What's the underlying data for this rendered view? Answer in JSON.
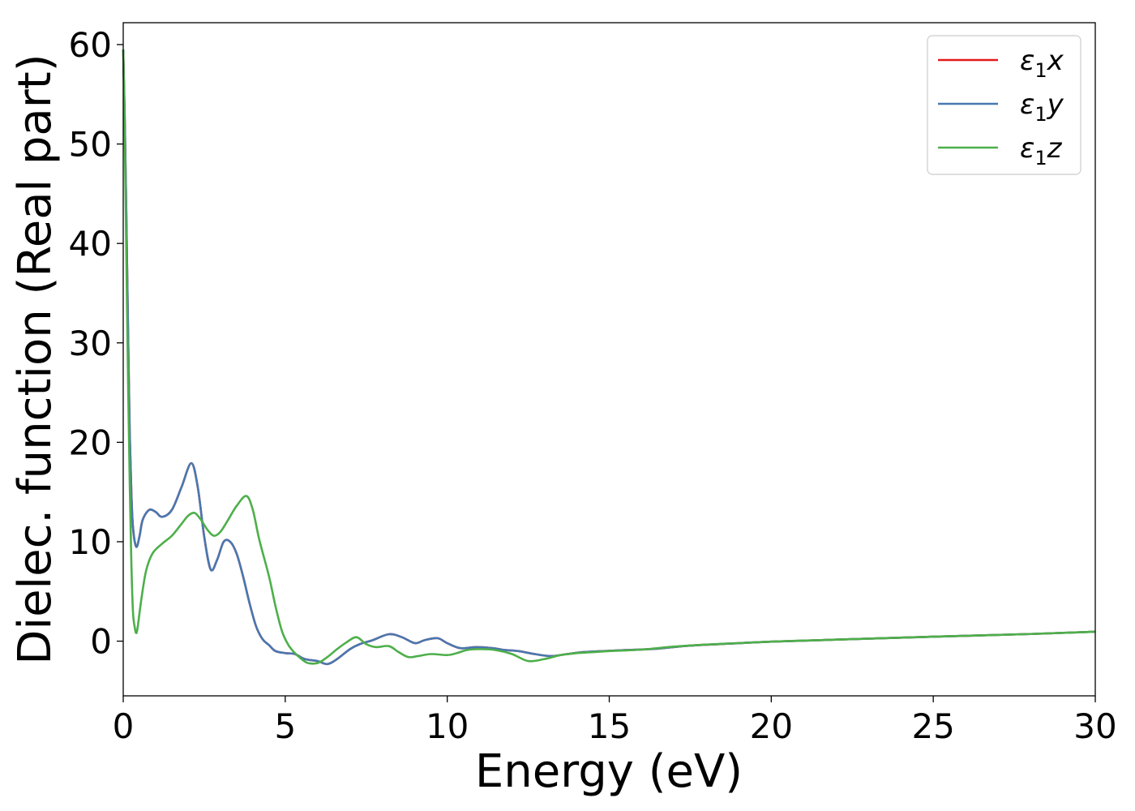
{
  "chart_data": {
    "type": "line",
    "xlabel": "Energy (eV)",
    "ylabel": "Dielec. function (Real part)",
    "xlim": [
      0,
      30
    ],
    "ylim": [
      -5.5,
      62.2
    ],
    "x_ticks": [
      0,
      5,
      10,
      15,
      20,
      25,
      30
    ],
    "x_tick_labels": [
      "0",
      "5",
      "10",
      "15",
      "20",
      "25",
      "30"
    ],
    "y_ticks": [
      0,
      10,
      20,
      30,
      40,
      50,
      60
    ],
    "y_tick_labels": [
      "0",
      "10",
      "20",
      "30",
      "40",
      "50",
      "60"
    ],
    "grid": false,
    "legend_position": "top-right",
    "series": [
      {
        "name": "ε1x",
        "legend_main": "ε",
        "legend_sub": "1",
        "legend_var": "x",
        "color": "#e41a1c",
        "points": [
          [
            0,
            59.5
          ],
          [
            0.05,
            52
          ],
          [
            0.1,
            42
          ],
          [
            0.15,
            31
          ],
          [
            0.2,
            21
          ],
          [
            0.25,
            15
          ],
          [
            0.3,
            11.5
          ],
          [
            0.4,
            9.5
          ],
          [
            0.5,
            10.5
          ],
          [
            0.6,
            12.2
          ],
          [
            0.8,
            13.2
          ],
          [
            1.0,
            13.0
          ],
          [
            1.2,
            12.5
          ],
          [
            1.5,
            13.2
          ],
          [
            1.8,
            15.5
          ],
          [
            2.1,
            17.9
          ],
          [
            2.3,
            15.5
          ],
          [
            2.5,
            10.5
          ],
          [
            2.7,
            7.2
          ],
          [
            2.9,
            8.2
          ],
          [
            3.1,
            10.0
          ],
          [
            3.3,
            10.0
          ],
          [
            3.5,
            8.8
          ],
          [
            3.7,
            6.5
          ],
          [
            3.9,
            3.8
          ],
          [
            4.1,
            1.5
          ],
          [
            4.3,
            0.2
          ],
          [
            4.5,
            -0.4
          ],
          [
            4.7,
            -1.0
          ],
          [
            5.0,
            -1.2
          ],
          [
            5.3,
            -1.3
          ],
          [
            5.6,
            -1.8
          ],
          [
            6.0,
            -2.0
          ],
          [
            6.3,
            -2.3
          ],
          [
            6.6,
            -1.8
          ],
          [
            7.0,
            -0.8
          ],
          [
            7.3,
            -0.3
          ],
          [
            7.7,
            0.1
          ],
          [
            8.2,
            0.7
          ],
          [
            8.6,
            0.4
          ],
          [
            9.0,
            -0.2
          ],
          [
            9.3,
            0.1
          ],
          [
            9.7,
            0.3
          ],
          [
            10.0,
            -0.2
          ],
          [
            10.4,
            -0.7
          ],
          [
            10.9,
            -0.6
          ],
          [
            11.4,
            -0.7
          ],
          [
            11.8,
            -0.9
          ],
          [
            12.2,
            -1.0
          ],
          [
            12.7,
            -1.3
          ],
          [
            13.2,
            -1.5
          ],
          [
            13.7,
            -1.3
          ],
          [
            14.2,
            -1.1
          ],
          [
            14.8,
            -1.0
          ],
          [
            15.5,
            -0.9
          ],
          [
            16.5,
            -0.75
          ],
          [
            17.5,
            -0.45
          ],
          [
            19.0,
            -0.2
          ],
          [
            20.0,
            -0.05
          ],
          [
            22.0,
            0.15
          ],
          [
            25.0,
            0.45
          ],
          [
            28.0,
            0.72
          ],
          [
            30.0,
            0.95
          ]
        ]
      },
      {
        "name": "ε1y",
        "legend_main": "ε",
        "legend_sub": "1",
        "legend_var": "y",
        "color": "#4878b0",
        "points": [
          [
            0,
            59.5
          ],
          [
            0.05,
            52
          ],
          [
            0.1,
            42
          ],
          [
            0.15,
            31
          ],
          [
            0.2,
            21
          ],
          [
            0.25,
            15
          ],
          [
            0.3,
            11.5
          ],
          [
            0.4,
            9.5
          ],
          [
            0.5,
            10.5
          ],
          [
            0.6,
            12.2
          ],
          [
            0.8,
            13.2
          ],
          [
            1.0,
            13.0
          ],
          [
            1.2,
            12.5
          ],
          [
            1.5,
            13.2
          ],
          [
            1.8,
            15.5
          ],
          [
            2.1,
            17.9
          ],
          [
            2.3,
            15.5
          ],
          [
            2.5,
            10.5
          ],
          [
            2.7,
            7.2
          ],
          [
            2.9,
            8.2
          ],
          [
            3.1,
            10.0
          ],
          [
            3.3,
            10.0
          ],
          [
            3.5,
            8.8
          ],
          [
            3.7,
            6.5
          ],
          [
            3.9,
            3.8
          ],
          [
            4.1,
            1.5
          ],
          [
            4.3,
            0.2
          ],
          [
            4.5,
            -0.4
          ],
          [
            4.7,
            -1.0
          ],
          [
            5.0,
            -1.2
          ],
          [
            5.3,
            -1.3
          ],
          [
            5.6,
            -1.8
          ],
          [
            6.0,
            -2.0
          ],
          [
            6.3,
            -2.3
          ],
          [
            6.6,
            -1.8
          ],
          [
            7.0,
            -0.8
          ],
          [
            7.3,
            -0.3
          ],
          [
            7.7,
            0.1
          ],
          [
            8.2,
            0.7
          ],
          [
            8.6,
            0.4
          ],
          [
            9.0,
            -0.2
          ],
          [
            9.3,
            0.1
          ],
          [
            9.7,
            0.3
          ],
          [
            10.0,
            -0.2
          ],
          [
            10.4,
            -0.7
          ],
          [
            10.9,
            -0.6
          ],
          [
            11.4,
            -0.7
          ],
          [
            11.8,
            -0.9
          ],
          [
            12.2,
            -1.0
          ],
          [
            12.7,
            -1.3
          ],
          [
            13.2,
            -1.5
          ],
          [
            13.7,
            -1.3
          ],
          [
            14.2,
            -1.1
          ],
          [
            14.8,
            -1.0
          ],
          [
            15.5,
            -0.9
          ],
          [
            16.5,
            -0.75
          ],
          [
            17.5,
            -0.45
          ],
          [
            19.0,
            -0.2
          ],
          [
            20.0,
            -0.05
          ],
          [
            22.0,
            0.15
          ],
          [
            25.0,
            0.45
          ],
          [
            28.0,
            0.72
          ],
          [
            30.0,
            0.95
          ]
        ]
      },
      {
        "name": "ε1z",
        "legend_main": "ε",
        "legend_sub": "1",
        "legend_var": "z",
        "color": "#4daf4a",
        "points": [
          [
            0,
            59.5
          ],
          [
            0.05,
            50
          ],
          [
            0.1,
            38
          ],
          [
            0.15,
            26
          ],
          [
            0.2,
            16
          ],
          [
            0.25,
            8
          ],
          [
            0.3,
            3
          ],
          [
            0.35,
            1.5
          ],
          [
            0.4,
            0.8
          ],
          [
            0.45,
            1.5
          ],
          [
            0.55,
            4.0
          ],
          [
            0.7,
            7.0
          ],
          [
            0.9,
            8.8
          ],
          [
            1.2,
            9.8
          ],
          [
            1.5,
            10.6
          ],
          [
            1.8,
            11.8
          ],
          [
            2.0,
            12.6
          ],
          [
            2.2,
            12.9
          ],
          [
            2.4,
            12.2
          ],
          [
            2.6,
            11.2
          ],
          [
            2.8,
            10.6
          ],
          [
            3.0,
            11.0
          ],
          [
            3.2,
            12.0
          ],
          [
            3.5,
            13.6
          ],
          [
            3.8,
            14.6
          ],
          [
            4.0,
            13.2
          ],
          [
            4.2,
            10.2
          ],
          [
            4.5,
            6.5
          ],
          [
            4.7,
            3.5
          ],
          [
            4.9,
            1.0
          ],
          [
            5.1,
            -0.4
          ],
          [
            5.3,
            -1.2
          ],
          [
            5.5,
            -1.8
          ],
          [
            5.7,
            -2.2
          ],
          [
            6.0,
            -2.2
          ],
          [
            6.3,
            -1.6
          ],
          [
            6.6,
            -0.8
          ],
          [
            6.9,
            -0.1
          ],
          [
            7.2,
            0.4
          ],
          [
            7.5,
            -0.3
          ],
          [
            7.8,
            -0.6
          ],
          [
            8.2,
            -0.5
          ],
          [
            8.5,
            -1.1
          ],
          [
            8.8,
            -1.6
          ],
          [
            9.1,
            -1.5
          ],
          [
            9.5,
            -1.3
          ],
          [
            10.0,
            -1.4
          ],
          [
            10.3,
            -1.2
          ],
          [
            10.6,
            -0.9
          ],
          [
            11.0,
            -0.8
          ],
          [
            11.5,
            -0.9
          ],
          [
            12.0,
            -1.3
          ],
          [
            12.5,
            -2.0
          ],
          [
            13.0,
            -1.8
          ],
          [
            13.5,
            -1.4
          ],
          [
            14.0,
            -1.2
          ],
          [
            14.5,
            -1.1
          ],
          [
            15.0,
            -1.0
          ],
          [
            16.0,
            -0.85
          ],
          [
            17.0,
            -0.55
          ],
          [
            18.0,
            -0.35
          ],
          [
            20.0,
            -0.05
          ],
          [
            22.0,
            0.15
          ],
          [
            25.0,
            0.45
          ],
          [
            28.0,
            0.72
          ],
          [
            30.0,
            0.95
          ]
        ]
      }
    ]
  }
}
